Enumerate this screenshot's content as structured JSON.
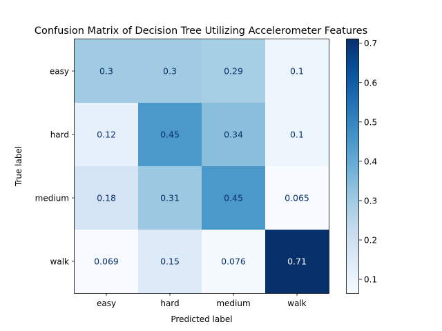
{
  "chart_data": {
    "type": "heatmap",
    "title": "Confusion Matrix of Decision Tree Utilizing Accelerometer Features",
    "xlabel": "Predicted label",
    "ylabel": "True label",
    "x_categories": [
      "easy",
      "hard",
      "medium",
      "walk"
    ],
    "y_categories": [
      "easy",
      "hard",
      "medium",
      "walk"
    ],
    "values": [
      [
        0.3,
        0.3,
        0.29,
        0.1
      ],
      [
        0.12,
        0.45,
        0.34,
        0.1
      ],
      [
        0.18,
        0.31,
        0.45,
        0.065
      ],
      [
        0.069,
        0.15,
        0.076,
        0.71
      ]
    ],
    "cell_labels": [
      [
        "0.3",
        "0.3",
        "0.29",
        "0.1"
      ],
      [
        "0.12",
        "0.45",
        "0.34",
        "0.1"
      ],
      [
        "0.18",
        "0.31",
        "0.45",
        "0.065"
      ],
      [
        "0.069",
        "0.15",
        "0.076",
        "0.71"
      ]
    ],
    "colormap": "Blues",
    "colorbar": {
      "range": [
        0.065,
        0.71
      ],
      "ticks": [
        0.1,
        0.2,
        0.3,
        0.4,
        0.5,
        0.6,
        0.7
      ],
      "tick_labels": [
        "0.1",
        "0.2",
        "0.3",
        "0.4",
        "0.5",
        "0.6",
        "0.7"
      ]
    },
    "grid": false
  }
}
